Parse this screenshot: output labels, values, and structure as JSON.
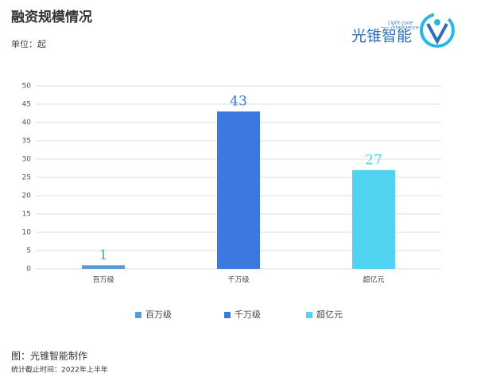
{
  "chart_data": {
    "type": "bar",
    "title": "融资规模情况",
    "subtitle": "单位：起",
    "categories": [
      "百万级",
      "千万级",
      "超亿元"
    ],
    "values": [
      1,
      43,
      27
    ],
    "colors": [
      "#5b9bd5",
      "#3b78e0",
      "#4fd3f0"
    ],
    "ylim": [
      0,
      50
    ],
    "yticks": [
      0,
      5,
      10,
      15,
      20,
      25,
      30,
      35,
      40,
      45,
      50
    ],
    "grid": true,
    "legend": "bottom",
    "source": "图：光锥智能制作",
    "note": "统计截止时间：2022年上半年"
  },
  "logo": {
    "name": "光锥智能",
    "tagline1": "Light cone",
    "tagline2": "—— intelligence"
  }
}
